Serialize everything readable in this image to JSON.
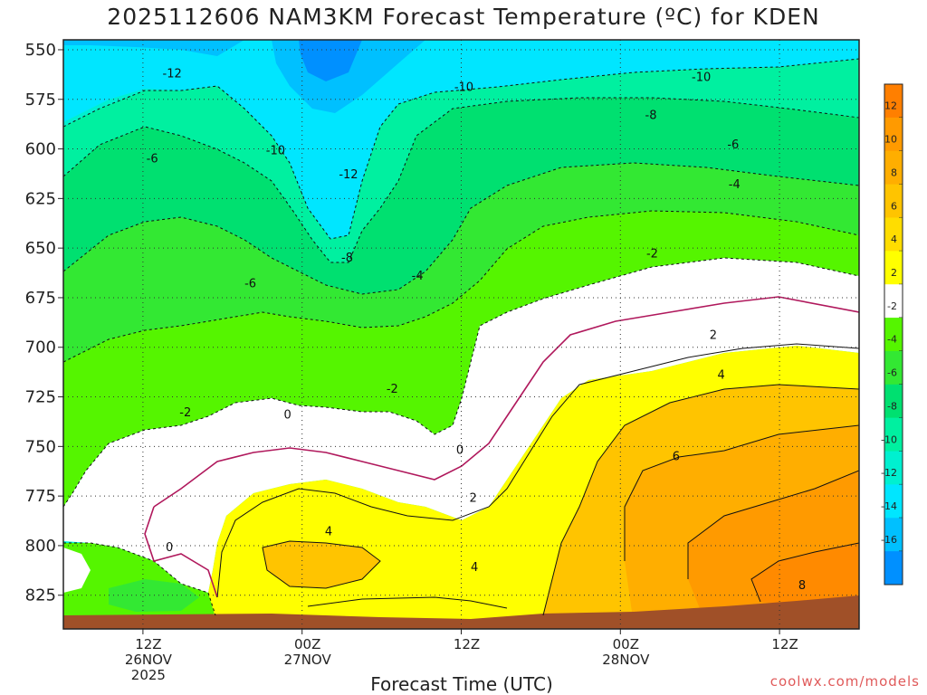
{
  "chart_data": {
    "type": "heatmap",
    "title": "2025112606 NAM3KM Forecast Temperature (ºC) for KDEN",
    "xlabel": "Forecast Time (UTC)",
    "credit": "coolwx.com/models",
    "y_axis": {
      "ticks": [
        550,
        575,
        600,
        625,
        650,
        675,
        700,
        725,
        750,
        775,
        800,
        825
      ],
      "range": [
        545,
        842
      ],
      "inverted": true
    },
    "x_axis": {
      "range_hours": [
        6,
        66
      ],
      "ticks": [
        {
          "hour": 12,
          "labels": [
            "12Z",
            "26NOV",
            "2025"
          ]
        },
        {
          "hour": 24,
          "labels": [
            "00Z",
            "27NOV"
          ]
        },
        {
          "hour": 36,
          "labels": [
            "12Z"
          ]
        },
        {
          "hour": 48,
          "labels": [
            "00Z",
            "28NOV"
          ]
        },
        {
          "hour": 60,
          "labels": [
            "12Z"
          ]
        }
      ]
    },
    "grid": true,
    "colorbar": {
      "placement": "right",
      "levels": [
        {
          "label": "12",
          "color": "#ff7f00"
        },
        {
          "label": "10",
          "color": "#ff9a00"
        },
        {
          "label": "8",
          "color": "#ffae00"
        },
        {
          "label": "6",
          "color": "#ffc400"
        },
        {
          "label": "4",
          "color": "#ffdd00"
        },
        {
          "label": "2",
          "color": "#ffff00"
        },
        {
          "label": "-2",
          "color": "#ffffff"
        },
        {
          "label": "-4",
          "color": "#55f500"
        },
        {
          "label": "-6",
          "color": "#33e833"
        },
        {
          "label": "-8",
          "color": "#00e070"
        },
        {
          "label": "-10",
          "color": "#00f0a0"
        },
        {
          "label": "-12",
          "color": "#00f0d0"
        },
        {
          "label": "-14",
          "color": "#00e6ff"
        },
        {
          "label": "-16",
          "color": "#00c0ff"
        },
        {
          "label": "",
          "color": "#0090ff"
        }
      ]
    },
    "contour_labels": [
      {
        "text": "-12",
        "hour": 14.2,
        "p": 562
      },
      {
        "text": "-10",
        "hour": 36.2,
        "p": 569
      },
      {
        "text": "-10",
        "hour": 54.1,
        "p": 564
      },
      {
        "text": "-8",
        "hour": 50.3,
        "p": 583
      },
      {
        "text": "-6",
        "hour": 12.7,
        "p": 605
      },
      {
        "text": "-10",
        "hour": 22.0,
        "p": 601
      },
      {
        "text": "-6",
        "hour": 56.5,
        "p": 598
      },
      {
        "text": "-12",
        "hour": 27.5,
        "p": 613
      },
      {
        "text": "-4",
        "hour": 56.6,
        "p": 618
      },
      {
        "text": "-8",
        "hour": 27.4,
        "p": 655
      },
      {
        "text": "-2",
        "hour": 50.4,
        "p": 653
      },
      {
        "text": "-6",
        "hour": 20.1,
        "p": 668
      },
      {
        "text": "-4",
        "hour": 32.7,
        "p": 664
      },
      {
        "text": "2",
        "hour": 55.0,
        "p": 694
      },
      {
        "text": "-2",
        "hour": 30.8,
        "p": 721
      },
      {
        "text": "4",
        "hour": 55.6,
        "p": 714
      },
      {
        "text": "-2",
        "hour": 15.2,
        "p": 733
      },
      {
        "text": "0",
        "hour": 22.9,
        "p": 734
      },
      {
        "text": "6",
        "hour": 52.2,
        "p": 755
      },
      {
        "text": "0",
        "hour": 35.9,
        "p": 752
      },
      {
        "text": "2",
        "hour": 36.9,
        "p": 776
      },
      {
        "text": "4",
        "hour": 26.0,
        "p": 793
      },
      {
        "text": "0",
        "hour": 14.0,
        "p": 801
      },
      {
        "text": "4",
        "hour": 37.0,
        "p": 811
      },
      {
        "text": "8",
        "hour": 61.7,
        "p": 820
      }
    ]
  }
}
